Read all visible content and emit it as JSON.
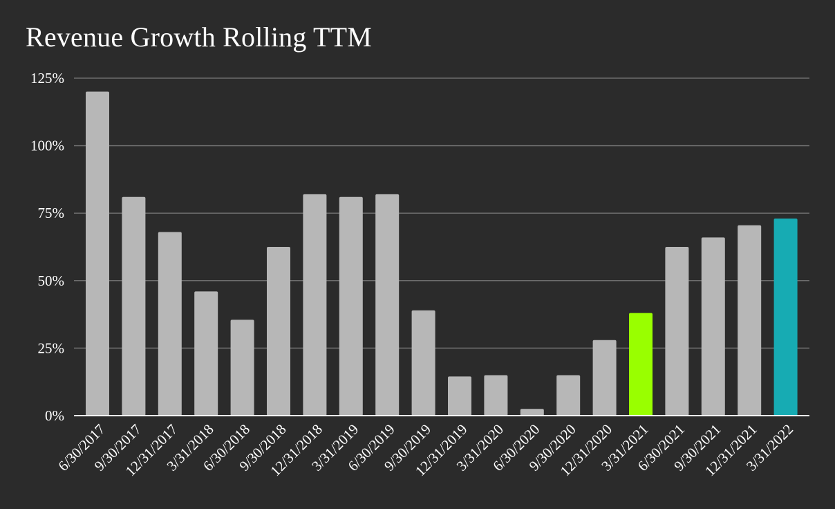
{
  "chart_data": {
    "type": "bar",
    "title": "Revenue Growth Rolling TTM",
    "xlabel": "",
    "ylabel": "",
    "categories": [
      "6/30/2017",
      "9/30/2017",
      "12/31/2017",
      "3/31/2018",
      "6/30/2018",
      "9/30/2018",
      "12/31/2018",
      "3/31/2019",
      "6/30/2019",
      "9/30/2019",
      "12/31/2019",
      "3/31/2020",
      "6/30/2020",
      "9/30/2020",
      "12/31/2020",
      "3/31/2021",
      "6/30/2021",
      "9/30/2021",
      "12/31/2021",
      "3/31/2022"
    ],
    "values": [
      120,
      81,
      68,
      46,
      35.5,
      62.5,
      82,
      81,
      82,
      39,
      14.5,
      15,
      2.5,
      15,
      28,
      38,
      62.5,
      66,
      70.5,
      73
    ],
    "ylim": [
      0,
      125
    ],
    "yticks": [
      0,
      25,
      50,
      75,
      100,
      125
    ],
    "ytick_labels": [
      "0%",
      "25%",
      "50%",
      "75%",
      "100%",
      "125%"
    ],
    "grid": true,
    "colors": {
      "background": "#2b2b2b",
      "default_bar": "#b7b7b7",
      "gridline": "#6d6d6d",
      "axis": "#ffffff",
      "text": "#ffffff",
      "highlights": {
        "3/31/2021": "#99ff00",
        "3/31/2022": "#17abb3"
      }
    }
  }
}
